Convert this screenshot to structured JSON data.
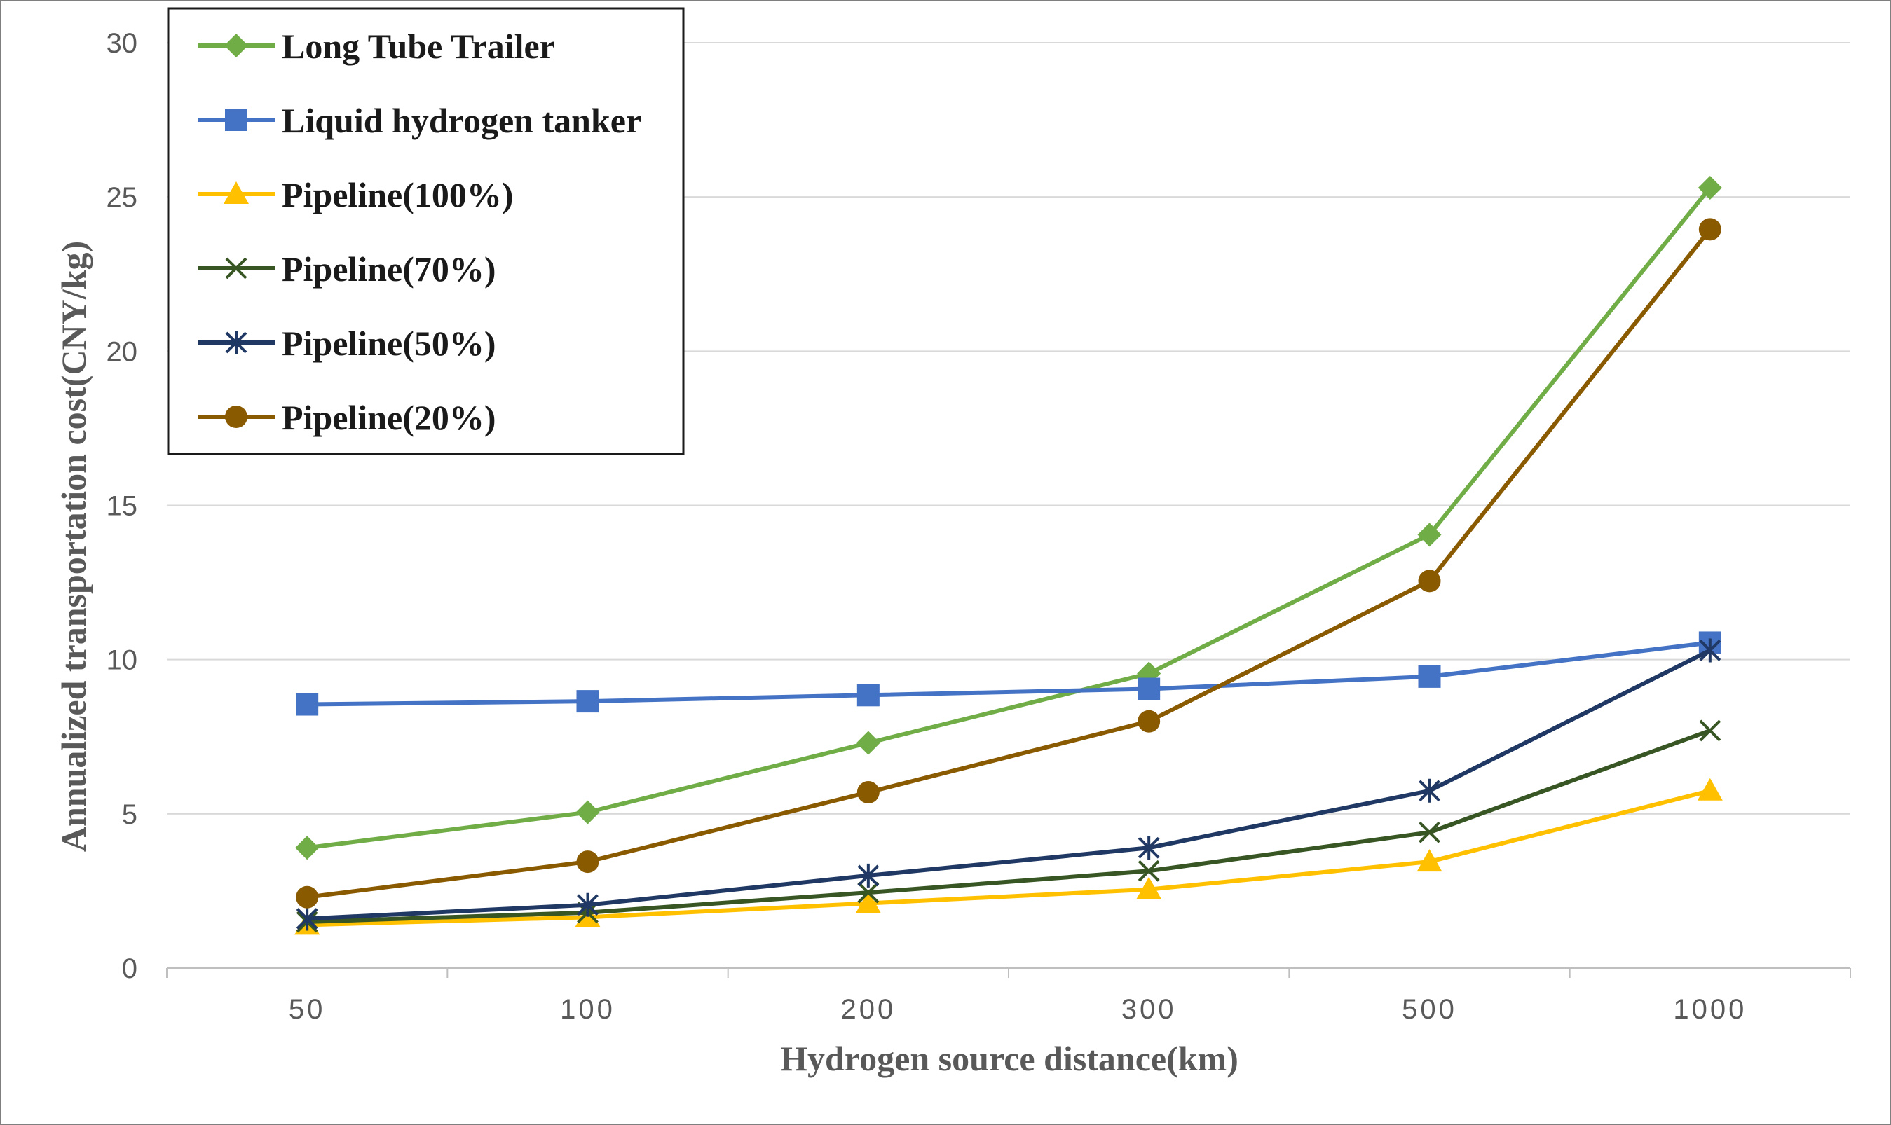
{
  "chart_data": {
    "type": "line",
    "title": "",
    "xlabel": "Hydrogen source distance(km)",
    "ylabel": "Annualized  transportation cost(CNY/kg)",
    "categories": [
      "50",
      "100",
      "200",
      "300",
      "500",
      "1000"
    ],
    "ylim": [
      0,
      30
    ],
    "yticks": [
      0,
      5,
      10,
      15,
      20,
      25,
      30
    ],
    "grid": "horizontal",
    "legend_position": "top-left",
    "series": [
      {
        "name": "Long Tube Trailer",
        "color": "#70ad47",
        "marker": "diamond",
        "values": [
          3.9,
          5.05,
          7.3,
          9.55,
          14.05,
          25.3
        ]
      },
      {
        "name": "Liquid hydrogen tanker",
        "color": "#4472c4",
        "marker": "square",
        "values": [
          8.55,
          8.65,
          8.85,
          9.05,
          9.45,
          10.55
        ]
      },
      {
        "name": "Pipeline(100%)",
        "color": "#ffc000",
        "marker": "triangle",
        "values": [
          1.4,
          1.65,
          2.1,
          2.55,
          3.45,
          5.75
        ]
      },
      {
        "name": "Pipeline(70%)",
        "color": "#375623",
        "marker": "x",
        "values": [
          1.5,
          1.8,
          2.45,
          3.15,
          4.4,
          7.7
        ]
      },
      {
        "name": "Pipeline(50%)",
        "color": "#203864",
        "marker": "star",
        "values": [
          1.6,
          2.05,
          3.0,
          3.9,
          5.75,
          10.3
        ]
      },
      {
        "name": "Pipeline(20%)",
        "color": "#8a5a00",
        "marker": "circle",
        "values": [
          2.3,
          3.45,
          5.7,
          8.0,
          12.55,
          23.95
        ]
      }
    ]
  }
}
